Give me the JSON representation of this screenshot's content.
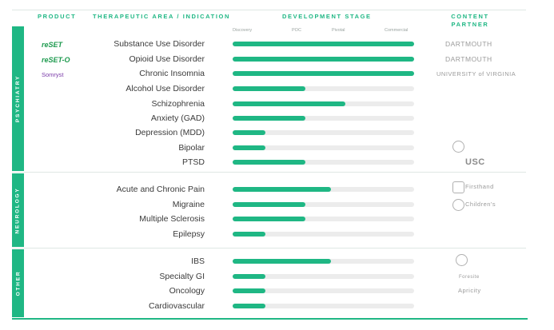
{
  "headers": {
    "product": "PRODUCT",
    "area": "THERAPEUTIC AREA / INDICATION",
    "stage": "DEVELOPMENT STAGE",
    "partner": "CONTENT PARTNER"
  },
  "stage_labels": [
    "Discovery",
    "POC",
    "Pivotal",
    "Commercial"
  ],
  "sections": [
    "PSYCHIATRY",
    "NEUROLOGY",
    "OTHER"
  ],
  "products": [
    "reSET",
    "reSET-O",
    "Somryst"
  ],
  "partners": {
    "dartmouth_1": "DARTMOUTH",
    "dartmouth_2": "DARTMOUTH",
    "uva": "UNIVERSITY of VIRGINIA",
    "usc": "USC",
    "firsthand": "Firsthand",
    "childrens": "Children's",
    "foresite": "Foresite",
    "apricity": "Apricity"
  },
  "rows": [
    {
      "label": "Substance Use Disorder",
      "progress": 1.0
    },
    {
      "label": "Opioid Use Disorder",
      "progress": 1.0
    },
    {
      "label": "Chronic Insomnia",
      "progress": 1.0
    },
    {
      "label": "Alcohol Use Disorder",
      "progress": 0.4
    },
    {
      "label": "Schizophrenia",
      "progress": 0.62
    },
    {
      "label": "Anxiety (GAD)",
      "progress": 0.4
    },
    {
      "label": "Depression (MDD)",
      "progress": 0.18
    },
    {
      "label": "Bipolar",
      "progress": 0.18
    },
    {
      "label": "PTSD",
      "progress": 0.4
    },
    {
      "label": "Acute and Chronic Pain",
      "progress": 0.54
    },
    {
      "label": "Migraine",
      "progress": 0.4
    },
    {
      "label": "Multiple Sclerosis",
      "progress": 0.4
    },
    {
      "label": "Epilepsy",
      "progress": 0.18
    },
    {
      "label": "IBS",
      "progress": 0.54
    },
    {
      "label": "Specialty GI",
      "progress": 0.18
    },
    {
      "label": "Oncology",
      "progress": 0.18
    },
    {
      "label": "Cardiovascular",
      "progress": 0.18
    }
  ]
}
